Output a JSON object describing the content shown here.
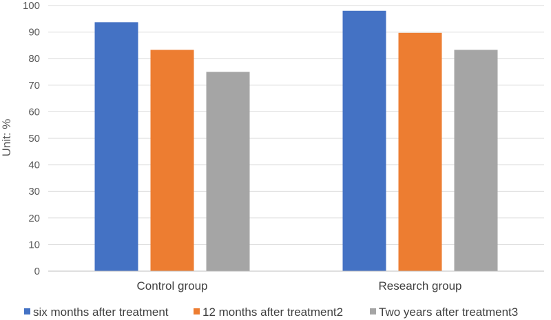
{
  "chart_data": {
    "type": "bar",
    "title": "",
    "xlabel": "",
    "ylabel": "Unit: %",
    "ylim": [
      0,
      100
    ],
    "yticks": [
      0,
      10,
      20,
      30,
      40,
      50,
      60,
      70,
      80,
      90,
      100
    ],
    "grid": true,
    "legend_position": "bottom",
    "categories": [
      "Control group",
      "Research group"
    ],
    "series": [
      {
        "name": "six months after treatment",
        "color": "#4472C4",
        "values": [
          93.7,
          98.0
        ]
      },
      {
        "name": "12 months after treatment2",
        "color": "#ED7D31",
        "values": [
          83.3,
          89.7
        ]
      },
      {
        "name": "Two years after treatment3",
        "color": "#A5A5A5",
        "values": [
          75.0,
          83.3
        ]
      }
    ]
  }
}
